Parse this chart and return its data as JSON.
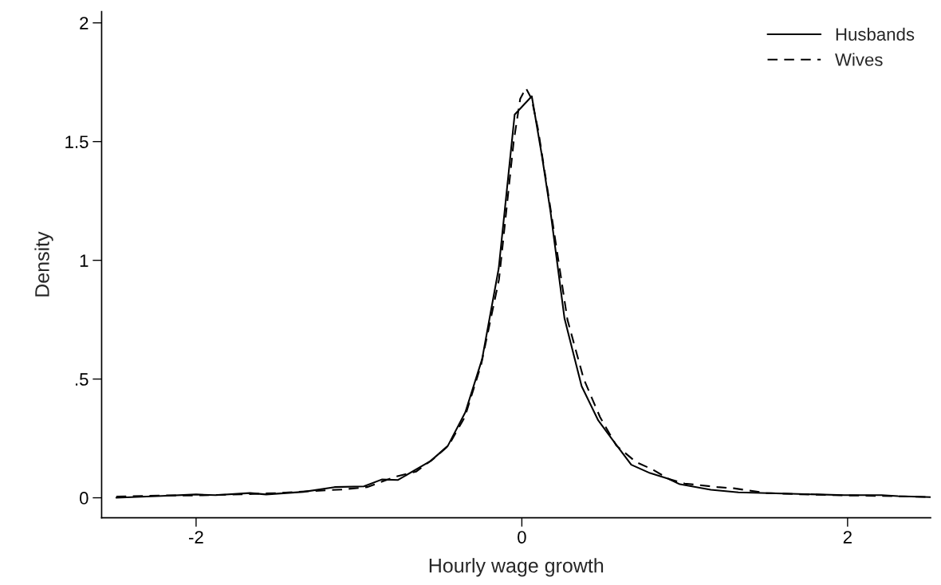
{
  "chart_data": {
    "type": "line",
    "xlabel": "Hourly wage growth",
    "ylabel": "Density",
    "xlim": [
      -2.58,
      2.51
    ],
    "xticks": [
      -2,
      0,
      2
    ],
    "ylim": [
      -0.084,
      2.047
    ],
    "yticks": [
      0,
      {
        "value": 0.5,
        "label": ".5"
      },
      1,
      1.5,
      2
    ],
    "grid": false,
    "legend": "top right",
    "marker": "none",
    "series": [
      {
        "name": "Husbands",
        "color": "#000000",
        "line_style": "solid",
        "x": [
          -2.49,
          -2.21,
          -2.0,
          -1.88,
          -1.67,
          -1.57,
          -1.34,
          -1.15,
          -0.97,
          -0.86,
          -0.76,
          -0.56,
          -0.455,
          -0.347,
          -0.244,
          -0.142,
          -0.044,
          0.061,
          0.122,
          0.176,
          0.262,
          0.367,
          0.469,
          0.567,
          0.672,
          0.787,
          0.9,
          0.97,
          1.16,
          1.33,
          1.65,
          1.98,
          2.21,
          2.31,
          2.51
        ],
        "values": [
          0.0,
          0.008,
          0.014,
          0.011,
          0.02,
          0.014,
          0.025,
          0.045,
          0.048,
          0.077,
          0.075,
          0.155,
          0.218,
          0.36,
          0.584,
          0.966,
          1.614,
          1.691,
          1.446,
          1.205,
          0.755,
          0.47,
          0.326,
          0.235,
          0.139,
          0.104,
          0.08,
          0.057,
          0.034,
          0.023,
          0.017,
          0.011,
          0.011,
          0.007,
          0.003
        ]
      },
      {
        "name": "Wives",
        "color": "#000000",
        "line_style": "dashed",
        "x": [
          -2.49,
          -2.2,
          -2.0,
          -1.7,
          -1.5,
          -1.3,
          -1.1,
          -0.95,
          -0.77,
          -0.65,
          -0.55,
          -0.45,
          -0.35,
          -0.25,
          -0.14,
          -0.05,
          -0.01,
          0.025,
          0.06,
          0.1,
          0.18,
          0.28,
          0.38,
          0.48,
          0.58,
          0.7,
          0.8,
          0.9,
          1.0,
          1.2,
          1.3,
          1.5,
          1.7,
          2.0,
          2.2,
          2.5
        ],
        "values": [
          0.005,
          0.01,
          0.01,
          0.015,
          0.02,
          0.028,
          0.035,
          0.045,
          0.09,
          0.11,
          0.16,
          0.22,
          0.34,
          0.56,
          0.92,
          1.5,
          1.68,
          1.725,
          1.68,
          1.55,
          1.2,
          0.75,
          0.5,
          0.34,
          0.22,
          0.151,
          0.12,
          0.08,
          0.06,
          0.045,
          0.04,
          0.02,
          0.015,
          0.01,
          0.008,
          0.003
        ]
      }
    ]
  }
}
